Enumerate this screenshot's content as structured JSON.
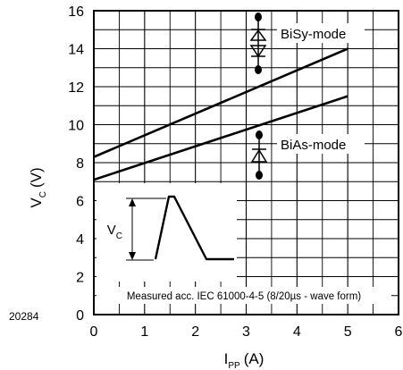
{
  "figure_id": "20284",
  "chart_data": {
    "type": "line",
    "xlabel": {
      "main": "I",
      "sub": "PP",
      "unit": "(A)"
    },
    "ylabel": {
      "main": "V",
      "sub": "C",
      "unit": "(V)"
    },
    "xlim": [
      0,
      6
    ],
    "ylim": [
      0,
      16
    ],
    "xticks": [
      0,
      1,
      2,
      3,
      4,
      5,
      6
    ],
    "yticks": [
      0,
      2,
      4,
      6,
      8,
      10,
      12,
      14,
      16
    ],
    "grid": true,
    "series": [
      {
        "name": "BiSy-mode",
        "x": [
          0,
          5
        ],
        "y": [
          8.3,
          14.0
        ]
      },
      {
        "name": "BiAs-mode",
        "x": [
          0,
          5
        ],
        "y": [
          7.1,
          11.5
        ]
      }
    ],
    "annotations": {
      "measurement": "Measured acc. IEC 61000-4-5 (8/20µs - wave form)",
      "inset_label": {
        "main": "V",
        "sub": "C"
      }
    }
  }
}
